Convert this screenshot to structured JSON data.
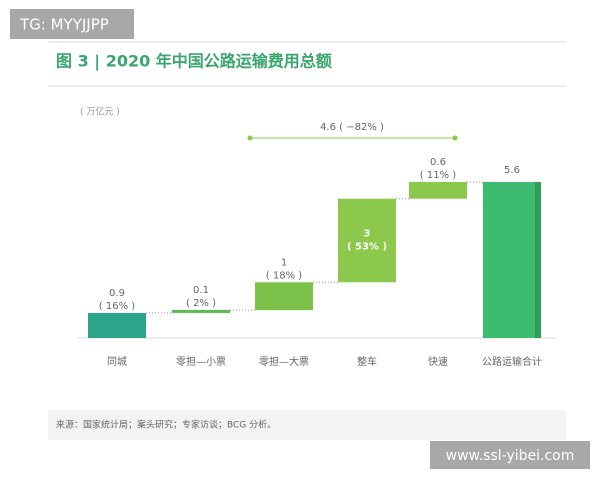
{
  "watermark_top": "TG: MYYJJPP",
  "watermark_bottom": "www.ssl-yibei.com",
  "chart_data": {
    "type": "waterfall",
    "title": "图 3 | 2020 年中国公路运输费用总额",
    "unit": "( 万亿元 )",
    "categories": [
      "同城",
      "零担—小票",
      "零担—大票",
      "整车",
      "快速"
    ],
    "values": [
      0.9,
      0.1,
      1.0,
      3.0,
      0.6
    ],
    "colors": [
      "#2ba58a",
      "#5dbb55",
      "#7cc24a",
      "#8cc84b",
      "#8cc84b"
    ],
    "shares": {
      "values": [
        16,
        2,
        18,
        53,
        11
      ],
      "value_labels": [
        "( 16% )",
        "( 2% )",
        "( 18% )",
        "( 53% )",
        "( 11% )"
      ]
    },
    "total": {
      "category": "公路运输合计",
      "value": 5.6,
      "color": "#3dbb6e"
    },
    "annotation": "4.6 ( −82% )",
    "source": "来源：国家统计局；案头研究；专家访谈；BCG 分析。"
  }
}
